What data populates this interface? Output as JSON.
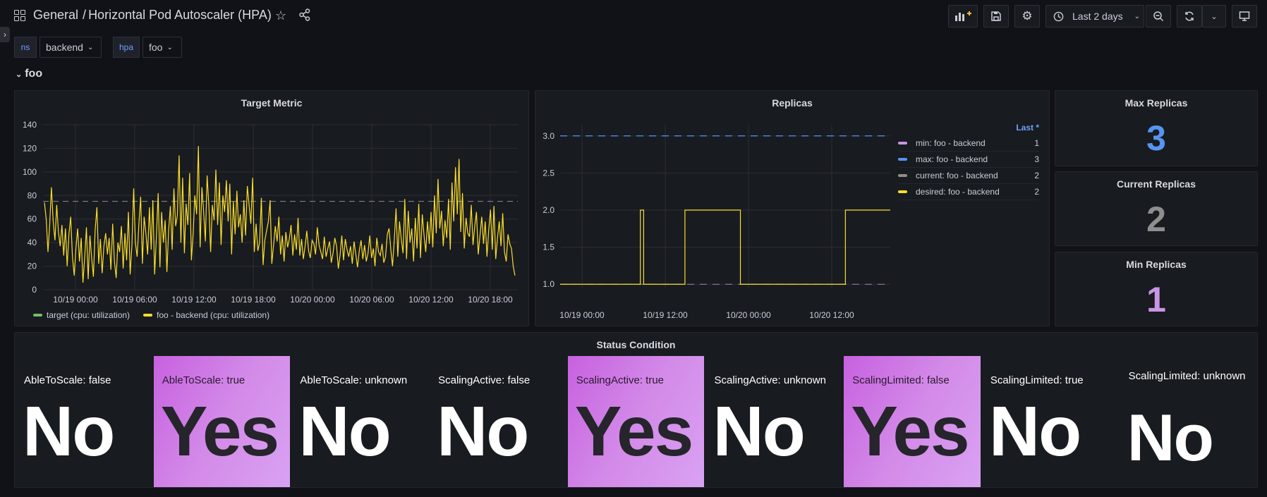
{
  "header": {
    "folder": "General",
    "separator": "/",
    "dashboard_title": "Horizontal Pod Autoscaler (HPA)",
    "time_range": "Last 2 days"
  },
  "variables": [
    {
      "label": "ns",
      "value": "backend"
    },
    {
      "label": "hpa",
      "value": "foo"
    }
  ],
  "row": {
    "title": "foo"
  },
  "panels": {
    "target_metric": {
      "title": "Target Metric",
      "legend": [
        {
          "name": "target (cpu: utilization)",
          "color": "#73bf69"
        },
        {
          "name": "foo - backend (cpu: utilization)",
          "color": "#fade2a"
        }
      ]
    },
    "replicas": {
      "title": "Replicas",
      "legend_header": "Last *",
      "legend": [
        {
          "name": "min: foo - backend",
          "value": "1",
          "color": "#ca95e5"
        },
        {
          "name": "max: foo - backend",
          "value": "3",
          "color": "#5794f2"
        },
        {
          "name": "current: foo - backend",
          "value": "2",
          "color": "#8e8e8e"
        },
        {
          "name": "desired: foo - backend",
          "value": "2",
          "color": "#fade2a"
        }
      ]
    },
    "max_replicas": {
      "title": "Max Replicas",
      "value": "3",
      "color": "#5794f2"
    },
    "current_replicas": {
      "title": "Current Replicas",
      "value": "2",
      "color": "#8e8e8e"
    },
    "min_replicas": {
      "title": "Min Replicas",
      "value": "1",
      "color": "#ca95e5"
    }
  },
  "status": {
    "title": "Status Condition",
    "items": [
      {
        "label": "AbleToScale: false",
        "value": "No",
        "highlight": false
      },
      {
        "label": "AbleToScale: true",
        "value": "Yes",
        "highlight": true
      },
      {
        "label": "AbleToScale: unknown",
        "value": "No",
        "highlight": false
      },
      {
        "label": "ScalingActive: false",
        "value": "No",
        "highlight": false
      },
      {
        "label": "ScalingActive: true",
        "value": "Yes",
        "highlight": true
      },
      {
        "label": "ScalingActive: unknown",
        "value": "No",
        "highlight": false
      },
      {
        "label": "ScalingLimited: false",
        "value": "Yes",
        "highlight": true
      },
      {
        "label": "ScalingLimited: true",
        "value": "No",
        "highlight": false
      },
      {
        "label": "ScalingLimited: unknown",
        "value": "No",
        "highlight": false
      }
    ]
  },
  "chart_data": [
    {
      "type": "line",
      "title": "Target Metric",
      "x_ticks": [
        "10/19 00:00",
        "10/19 06:00",
        "10/19 12:00",
        "10/19 18:00",
        "10/20 00:00",
        "10/20 06:00",
        "10/20 12:00",
        "10/20 18:00"
      ],
      "y_ticks": [
        "0",
        "20",
        "40",
        "60",
        "80",
        "100",
        "120",
        "140"
      ],
      "ylim": [
        0,
        140
      ],
      "series": [
        {
          "name": "target (cpu: utilization)",
          "color": "#73bf69",
          "style": "dashed",
          "constant": 75
        },
        {
          "name": "foo - backend (cpu: utilization)",
          "color": "#fade2a",
          "values": [
            74,
            60,
            32,
            55,
            87,
            58,
            42,
            72,
            49,
            37,
            55,
            29,
            52,
            20,
            47,
            62,
            28,
            12,
            35,
            52,
            24,
            44,
            6,
            27,
            53,
            9,
            46,
            27,
            11,
            51,
            70,
            22,
            43,
            14,
            37,
            48,
            30,
            44,
            17,
            56,
            24,
            10,
            40,
            32,
            54,
            18,
            48,
            25,
            66,
            13,
            38,
            86,
            40,
            28,
            56,
            79,
            22,
            62,
            48,
            30,
            70,
            34,
            76,
            13,
            45,
            82,
            19,
            66,
            40,
            59,
            15,
            50,
            71,
            34,
            86,
            54,
            63,
            114,
            40,
            95,
            31,
            73,
            55,
            99,
            25,
            48,
            80,
            64,
            122,
            36,
            87,
            67,
            41,
            97,
            71,
            32,
            72,
            59,
            102,
            55,
            91,
            38,
            80,
            66,
            93,
            58,
            90,
            30,
            75,
            47,
            84,
            53,
            64,
            40,
            76,
            46,
            88,
            72,
            56,
            95,
            32,
            56,
            33,
            40,
            78,
            21,
            42,
            50,
            58,
            76,
            22,
            38,
            54,
            41,
            62,
            30,
            46,
            24,
            49,
            36,
            43,
            55,
            29,
            47,
            34,
            61,
            29,
            43,
            26,
            37,
            50,
            33,
            27,
            42,
            39,
            30,
            53,
            38,
            32,
            26,
            45,
            28,
            35,
            41,
            23,
            31,
            44,
            37,
            18,
            29,
            46,
            25,
            43,
            34,
            28,
            37,
            22,
            41,
            30,
            19,
            33,
            42,
            26,
            38,
            24,
            31,
            46,
            27,
            35,
            20,
            44,
            32,
            29,
            39,
            23,
            28,
            47,
            52,
            34,
            20,
            42,
            69,
            28,
            58,
            43,
            31,
            77,
            26,
            67,
            40,
            52,
            24,
            61,
            35,
            73,
            27,
            64,
            46,
            32,
            58,
            39,
            66,
            36,
            80,
            48,
            94,
            52,
            67,
            37,
            59,
            44,
            77,
            34,
            91,
            58,
            104,
            64,
            111,
            49,
            82,
            35,
            61,
            48,
            45,
            72,
            38,
            54,
            66,
            30,
            46,
            62,
            39,
            58,
            28,
            51,
            68,
            34,
            71,
            26,
            44,
            58,
            37,
            65,
            32,
            24,
            47,
            39,
            35,
            20,
            12
          ]
        }
      ]
    },
    {
      "type": "line",
      "title": "Replicas",
      "x_ticks": [
        "10/19 00:00",
        "10/19 12:00",
        "10/20 00:00",
        "10/20 12:00"
      ],
      "y_ticks": [
        "1.0",
        "1.5",
        "2.0",
        "2.5",
        "3.0"
      ],
      "ylim": [
        0.85,
        3.15
      ],
      "series": [
        {
          "name": "min: foo - backend",
          "color": "#ca95e5",
          "style": "dashed",
          "constant": 1
        },
        {
          "name": "max: foo - backend",
          "color": "#5794f2",
          "style": "dashed",
          "constant": 3
        },
        {
          "name": "current: foo - backend",
          "color": "#8e8e8e"
        },
        {
          "name": "desired: foo - backend",
          "color": "#fade2a",
          "steps": [
            [
              0,
              1
            ],
            [
              0.243,
              2
            ],
            [
              0.253,
              1
            ],
            [
              0.378,
              2
            ],
            [
              0.546,
              1
            ],
            [
              0.864,
              2
            ],
            [
              1.0,
              2
            ]
          ]
        }
      ]
    }
  ]
}
